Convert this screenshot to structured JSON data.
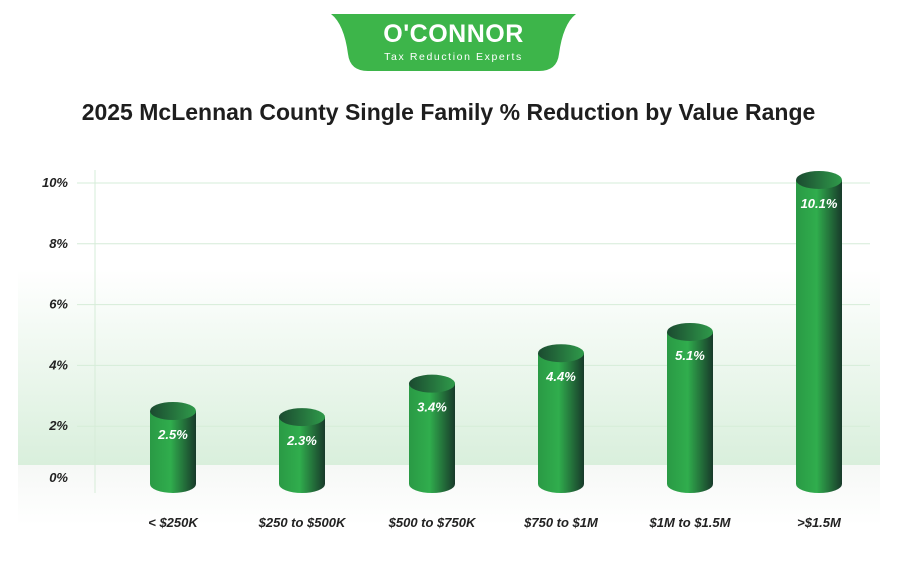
{
  "logo": {
    "name": "O'CONNOR",
    "tagline": "Tax Reduction Experts"
  },
  "colors": {
    "brand": "#3db54a",
    "bar_light": "#2ea84a",
    "bar_dark": "#1a3a2a",
    "grid": "#d6ecd8"
  },
  "chart_data": {
    "type": "bar",
    "title": "2025 McLennan County Single Family % Reduction by Value Range",
    "xlabel": "",
    "ylabel": "",
    "categories": [
      "< $250K",
      "$250 to $500K",
      "$500 to $750K",
      "$750 to $1M",
      "$1M to $1.5M",
      ">$1.5M"
    ],
    "values": [
      2.5,
      2.3,
      3.4,
      4.4,
      5.1,
      10.1
    ],
    "data_labels": [
      "2.5%",
      "2.3%",
      "3.4%",
      "4.4%",
      "5.1%",
      "10.1%"
    ],
    "ylim": [
      0,
      10
    ],
    "yticks": [
      0,
      2,
      4,
      6,
      8,
      10
    ],
    "ytick_labels": [
      "0%",
      "2%",
      "4%",
      "6%",
      "8%",
      "10%"
    ],
    "grid": true
  }
}
